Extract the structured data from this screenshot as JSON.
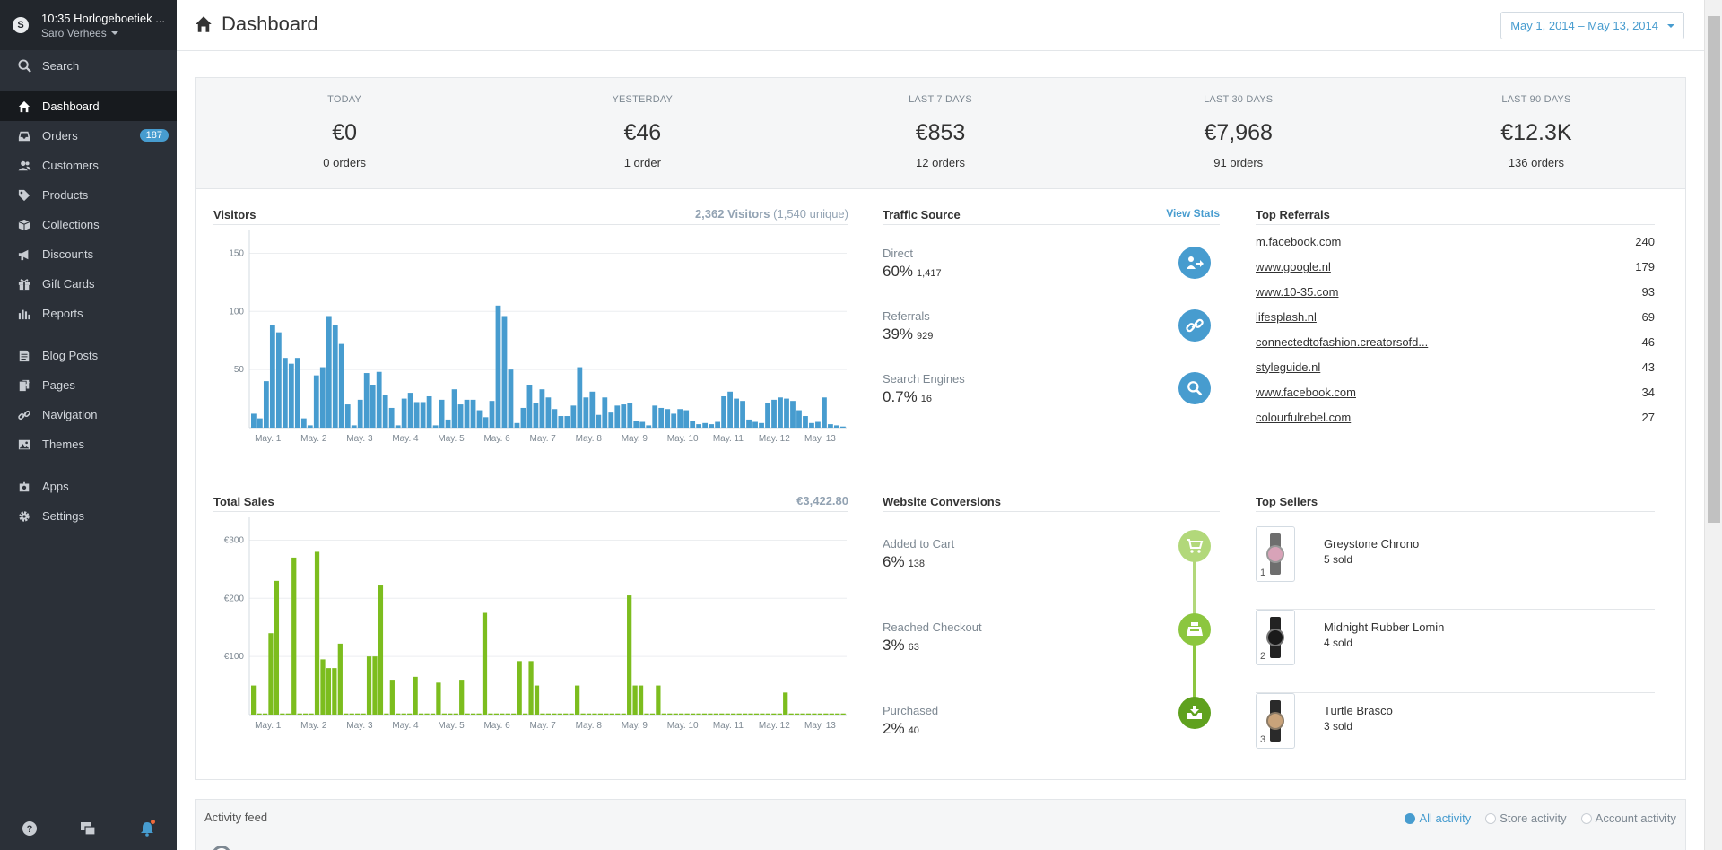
{
  "store": {
    "name": "10:35 Horlogeboetiek ...",
    "user": "Saro Verhees",
    "logo_letter": "S"
  },
  "nav": {
    "search": "Search",
    "items": [
      {
        "label": "Dashboard",
        "icon": "home-icon"
      },
      {
        "label": "Orders",
        "icon": "inbox-icon",
        "badge": "187"
      },
      {
        "label": "Customers",
        "icon": "users-icon"
      },
      {
        "label": "Products",
        "icon": "tag-icon"
      },
      {
        "label": "Collections",
        "icon": "box-icon"
      },
      {
        "label": "Discounts",
        "icon": "megaphone-icon"
      },
      {
        "label": "Gift Cards",
        "icon": "gift-icon"
      },
      {
        "label": "Reports",
        "icon": "bar-chart-icon"
      },
      {
        "label": "Blog Posts",
        "icon": "document-icon"
      },
      {
        "label": "Pages",
        "icon": "pages-icon"
      },
      {
        "label": "Navigation",
        "icon": "link-icon"
      },
      {
        "label": "Themes",
        "icon": "image-icon"
      },
      {
        "label": "Apps",
        "icon": "apps-icon"
      },
      {
        "label": "Settings",
        "icon": "gear-icon"
      }
    ]
  },
  "header": {
    "title": "Dashboard",
    "date_range": "May 1, 2014 – May 13, 2014"
  },
  "kpis": [
    {
      "label": "TODAY",
      "value": "€0",
      "sub": "0 orders"
    },
    {
      "label": "YESTERDAY",
      "value": "€46",
      "sub": "1 order"
    },
    {
      "label": "LAST 7 DAYS",
      "value": "€853",
      "sub": "12 orders"
    },
    {
      "label": "LAST 30 DAYS",
      "value": "€7,968",
      "sub": "91 orders"
    },
    {
      "label": "LAST 90 DAYS",
      "value": "€12.3K",
      "sub": "136 orders"
    }
  ],
  "visitors": {
    "title": "Visitors",
    "total": "2,362 Visitors",
    "unique": "(1,540 unique)"
  },
  "total_sales": {
    "title": "Total Sales",
    "total": "€3,422.80"
  },
  "traffic": {
    "title": "Traffic Source",
    "link": "View Stats",
    "items": [
      {
        "label": "Direct",
        "pct": "60%",
        "count": "1,417",
        "icon": "enter-icon"
      },
      {
        "label": "Referrals",
        "pct": "39%",
        "count": "929",
        "icon": "link-icon"
      },
      {
        "label": "Search Engines",
        "pct": "0.7%",
        "count": "16",
        "icon": "search-icon"
      }
    ]
  },
  "conversions": {
    "title": "Website Conversions",
    "items": [
      {
        "label": "Added to Cart",
        "pct": "6%",
        "count": "138",
        "icon": "cart-icon",
        "color": "#b2d87a"
      },
      {
        "label": "Reached Checkout",
        "pct": "3%",
        "count": "63",
        "icon": "register-icon",
        "color": "#8cc63f"
      },
      {
        "label": "Purchased",
        "pct": "2%",
        "count": "40",
        "icon": "download-box-icon",
        "color": "#5fa11e"
      }
    ]
  },
  "referrals": {
    "title": "Top Referrals",
    "items": [
      {
        "site": "m.facebook.com",
        "count": "240"
      },
      {
        "site": "www.google.nl",
        "count": "179"
      },
      {
        "site": "www.10-35.com",
        "count": "93"
      },
      {
        "site": "lifesplash.nl",
        "count": "69"
      },
      {
        "site": "connectedtofashion.creatorsofd...",
        "count": "46"
      },
      {
        "site": "styleguide.nl",
        "count": "43"
      },
      {
        "site": "www.facebook.com",
        "count": "34"
      },
      {
        "site": "colourfulrebel.com",
        "count": "27"
      }
    ]
  },
  "sellers": {
    "title": "Top Sellers",
    "items": [
      {
        "rank": "1",
        "name": "Greystone Chrono",
        "sold": "5 sold",
        "dial": "#d8a3b8"
      },
      {
        "rank": "2",
        "name": "Midnight Rubber Lomin",
        "sold": "4 sold",
        "dial": "#1a1a1a"
      },
      {
        "rank": "3",
        "name": "Turtle Brasco",
        "sold": "3 sold",
        "dial": "#c9a37a"
      }
    ]
  },
  "activity": {
    "title": "Activity feed",
    "filters": [
      {
        "label": "All activity",
        "selected": true
      },
      {
        "label": "Store activity",
        "selected": false
      },
      {
        "label": "Account activity",
        "selected": false
      }
    ]
  },
  "colors": {
    "accent": "#479ccf",
    "visitors_bar": "#479ccf",
    "sales_bar": "#7cbd1e",
    "sidebar": "#2b3038"
  },
  "chart_data": [
    {
      "type": "bar",
      "title": "Visitors",
      "x_ticks": [
        "May. 1",
        "May. 2",
        "May. 3",
        "May. 4",
        "May. 5",
        "May. 6",
        "May. 7",
        "May. 8",
        "May. 9",
        "May. 10",
        "May. 11",
        "May. 12",
        "May. 13"
      ],
      "y_ticks": [
        "150",
        "100",
        "50"
      ],
      "ylim": [
        0,
        165
      ],
      "values": [
        12,
        8,
        40,
        88,
        82,
        60,
        55,
        60,
        8,
        2,
        45,
        52,
        96,
        88,
        72,
        20,
        2,
        24,
        47,
        37,
        48,
        28,
        17,
        2,
        25,
        30,
        22,
        22,
        27,
        2,
        24,
        7,
        33,
        20,
        24,
        24,
        15,
        9,
        23,
        105,
        96,
        50,
        4,
        17,
        37,
        21,
        33,
        26,
        16,
        10,
        10,
        19,
        52,
        26,
        31,
        11,
        26,
        13,
        19,
        20,
        21,
        6,
        5,
        2,
        19,
        17,
        16,
        12,
        16,
        15,
        6,
        3,
        4,
        3,
        5,
        27,
        31,
        25,
        23,
        7,
        5,
        4,
        21,
        24,
        26,
        25,
        23,
        15,
        10,
        4,
        5,
        26,
        3,
        2,
        1
      ]
    },
    {
      "type": "bar",
      "title": "Total Sales",
      "x_ticks": [
        "May. 1",
        "May. 2",
        "May. 3",
        "May. 4",
        "May. 5",
        "May. 6",
        "May. 7",
        "May. 8",
        "May. 9",
        "May. 10",
        "May. 11",
        "May. 12",
        "May. 13"
      ],
      "y_ticks": [
        "€300",
        "€200",
        "€100"
      ],
      "ylim": [
        0,
        330
      ],
      "values": [
        50,
        2,
        2,
        140,
        230,
        2,
        2,
        270,
        2,
        2,
        2,
        280,
        95,
        80,
        80,
        122,
        2,
        2,
        2,
        2,
        100,
        100,
        222,
        2,
        60,
        2,
        2,
        2,
        65,
        2,
        2,
        2,
        55,
        2,
        2,
        2,
        60,
        2,
        2,
        2,
        175,
        2,
        2,
        2,
        2,
        2,
        92,
        2,
        92,
        50,
        2,
        2,
        2,
        2,
        2,
        2,
        50,
        2,
        2,
        2,
        2,
        2,
        2,
        2,
        2,
        205,
        50,
        50,
        2,
        2,
        50,
        2,
        2,
        2,
        2,
        2,
        2,
        2,
        2,
        2,
        2,
        2,
        2,
        2,
        2,
        2,
        2,
        2,
        2,
        2,
        2,
        2,
        38,
        2,
        2,
        2,
        2,
        2,
        2,
        2,
        2,
        2,
        2
      ]
    }
  ]
}
